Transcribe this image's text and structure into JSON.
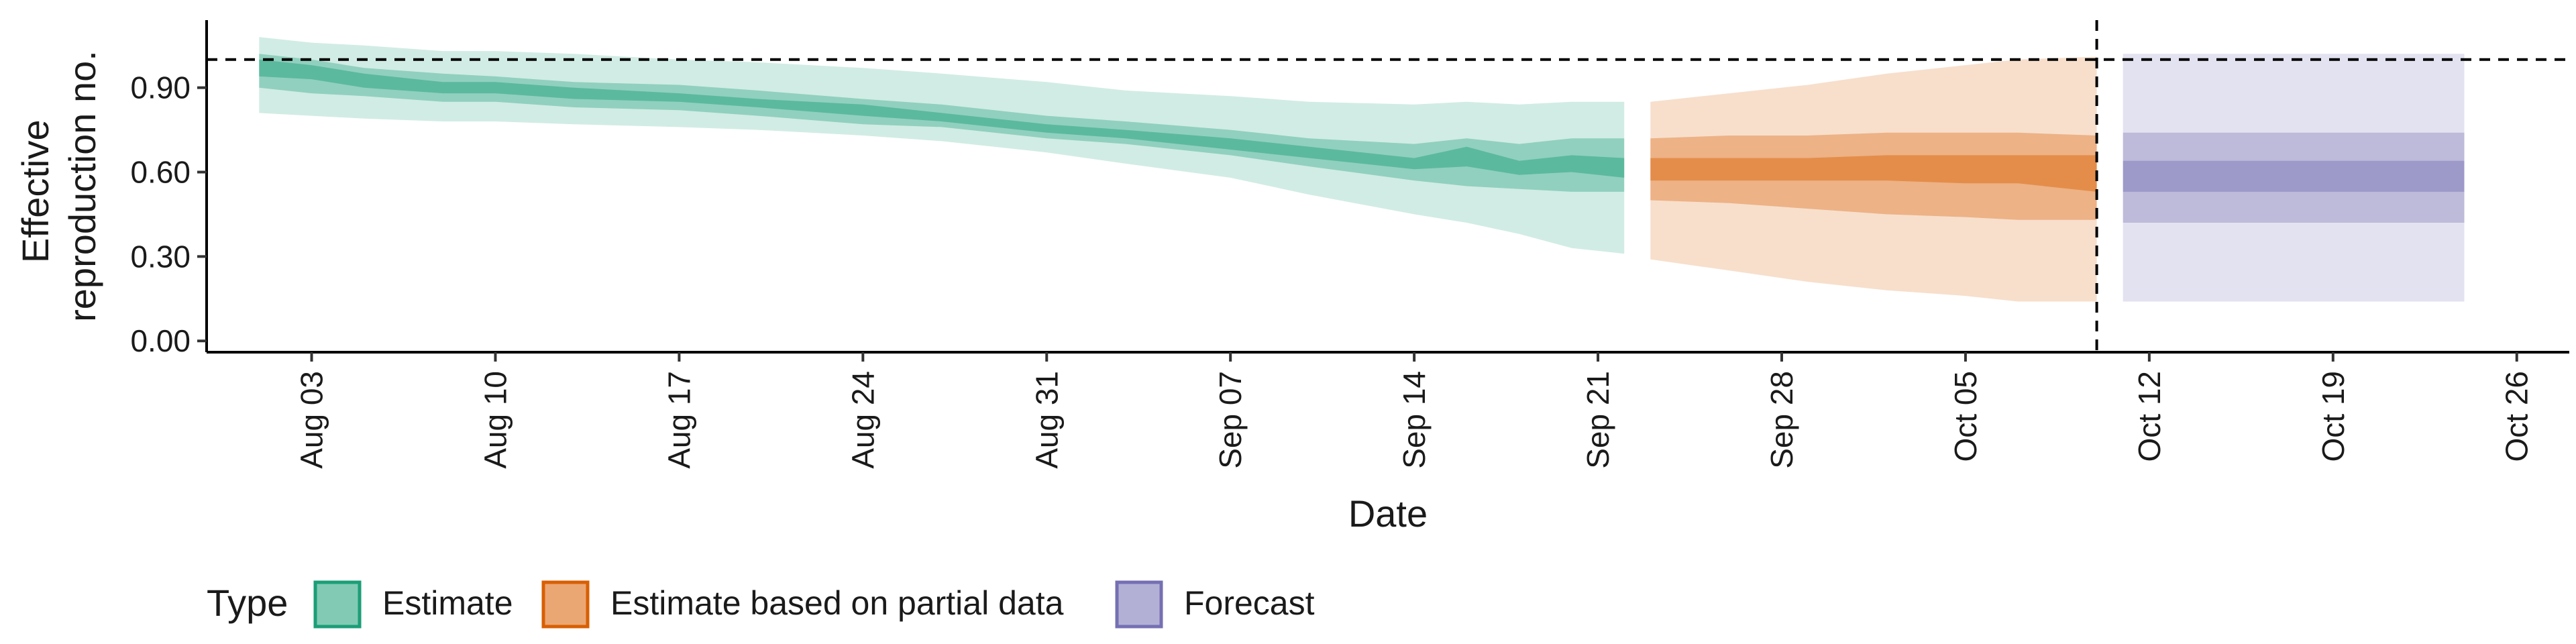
{
  "chart_data": {
    "type": "area",
    "xlabel": "Date",
    "ylabel_lines": [
      "Effective",
      "reproduction no."
    ],
    "x_ticks": [
      {
        "date": "2020-08-03",
        "label": "Aug 03"
      },
      {
        "date": "2020-08-10",
        "label": "Aug 10"
      },
      {
        "date": "2020-08-17",
        "label": "Aug 17"
      },
      {
        "date": "2020-08-24",
        "label": "Aug 24"
      },
      {
        "date": "2020-08-31",
        "label": "Aug 31"
      },
      {
        "date": "2020-09-07",
        "label": "Sep 07"
      },
      {
        "date": "2020-09-14",
        "label": "Sep 14"
      },
      {
        "date": "2020-09-21",
        "label": "Sep 21"
      },
      {
        "date": "2020-09-28",
        "label": "Sep 28"
      },
      {
        "date": "2020-10-05",
        "label": "Oct 05"
      },
      {
        "date": "2020-10-12",
        "label": "Oct 12"
      },
      {
        "date": "2020-10-19",
        "label": "Oct 19"
      },
      {
        "date": "2020-10-26",
        "label": "Oct 26"
      }
    ],
    "xlim": [
      "2020-07-30",
      "2020-10-28"
    ],
    "y_ticks": [
      {
        "value": 0.0,
        "label": "0.00"
      },
      {
        "value": 0.3,
        "label": "0.30"
      },
      {
        "value": 0.6,
        "label": "0.60"
      },
      {
        "value": 0.9,
        "label": "0.90"
      }
    ],
    "ylim": [
      -0.04,
      1.14
    ],
    "reference_line_y": 1.0,
    "reference_line_date": "2020-10-10",
    "grid": false,
    "legend": {
      "title": "Type",
      "placement": "bottom",
      "items": [
        {
          "label": "Estimate",
          "series": "estimate"
        },
        {
          "label": "Estimate based on partial data",
          "series": "partial"
        },
        {
          "label": "Forecast",
          "series": "forecast"
        }
      ]
    },
    "colors": {
      "estimate": "#1b9e77",
      "partial": "#d95f02",
      "forecast": "#7570b3"
    },
    "series": [
      {
        "key": "estimate",
        "points": [
          {
            "date": "2020-08-01",
            "lo90": 0.81,
            "lo50": 0.9,
            "lo20": 0.94,
            "hi20": 1.0,
            "hi50": 1.02,
            "hi90": 1.08
          },
          {
            "date": "2020-08-03",
            "lo90": 0.8,
            "lo50": 0.88,
            "lo20": 0.93,
            "hi20": 0.98,
            "hi50": 1.0,
            "hi90": 1.06
          },
          {
            "date": "2020-08-05",
            "lo90": 0.79,
            "lo50": 0.87,
            "lo20": 0.9,
            "hi20": 0.95,
            "hi50": 0.97,
            "hi90": 1.05
          },
          {
            "date": "2020-08-08",
            "lo90": 0.78,
            "lo50": 0.85,
            "lo20": 0.88,
            "hi20": 0.92,
            "hi50": 0.95,
            "hi90": 1.03
          },
          {
            "date": "2020-08-10",
            "lo90": 0.78,
            "lo50": 0.85,
            "lo20": 0.88,
            "hi20": 0.92,
            "hi50": 0.94,
            "hi90": 1.03
          },
          {
            "date": "2020-08-13",
            "lo90": 0.77,
            "lo50": 0.83,
            "lo20": 0.86,
            "hi20": 0.9,
            "hi50": 0.92,
            "hi90": 1.02
          },
          {
            "date": "2020-08-17",
            "lo90": 0.76,
            "lo50": 0.82,
            "lo20": 0.85,
            "hi20": 0.88,
            "hi50": 0.91,
            "hi90": 1.0
          },
          {
            "date": "2020-08-20",
            "lo90": 0.75,
            "lo50": 0.8,
            "lo20": 0.83,
            "hi20": 0.86,
            "hi50": 0.89,
            "hi90": 0.99
          },
          {
            "date": "2020-08-24",
            "lo90": 0.73,
            "lo50": 0.77,
            "lo20": 0.8,
            "hi20": 0.84,
            "hi50": 0.86,
            "hi90": 0.97
          },
          {
            "date": "2020-08-27",
            "lo90": 0.71,
            "lo50": 0.76,
            "lo20": 0.78,
            "hi20": 0.81,
            "hi50": 0.84,
            "hi90": 0.95
          },
          {
            "date": "2020-08-31",
            "lo90": 0.67,
            "lo50": 0.72,
            "lo20": 0.74,
            "hi20": 0.77,
            "hi50": 0.8,
            "hi90": 0.92
          },
          {
            "date": "2020-09-03",
            "lo90": 0.63,
            "lo50": 0.7,
            "lo20": 0.72,
            "hi20": 0.75,
            "hi50": 0.78,
            "hi90": 0.89
          },
          {
            "date": "2020-09-07",
            "lo90": 0.58,
            "lo50": 0.66,
            "lo20": 0.68,
            "hi20": 0.72,
            "hi50": 0.75,
            "hi90": 0.87
          },
          {
            "date": "2020-09-10",
            "lo90": 0.52,
            "lo50": 0.62,
            "lo20": 0.65,
            "hi20": 0.69,
            "hi50": 0.72,
            "hi90": 0.85
          },
          {
            "date": "2020-09-14",
            "lo90": 0.45,
            "lo50": 0.57,
            "lo20": 0.61,
            "hi20": 0.65,
            "hi50": 0.7,
            "hi90": 0.84
          },
          {
            "date": "2020-09-16",
            "lo90": 0.42,
            "lo50": 0.55,
            "lo20": 0.62,
            "hi20": 0.69,
            "hi50": 0.72,
            "hi90": 0.85
          },
          {
            "date": "2020-09-18",
            "lo90": 0.38,
            "lo50": 0.54,
            "lo20": 0.59,
            "hi20": 0.64,
            "hi50": 0.7,
            "hi90": 0.84
          },
          {
            "date": "2020-09-20",
            "lo90": 0.33,
            "lo50": 0.53,
            "lo20": 0.6,
            "hi20": 0.66,
            "hi50": 0.72,
            "hi90": 0.85
          },
          {
            "date": "2020-09-22",
            "lo90": 0.31,
            "lo50": 0.53,
            "lo20": 0.58,
            "hi20": 0.65,
            "hi50": 0.72,
            "hi90": 0.85
          }
        ]
      },
      {
        "key": "partial",
        "points": [
          {
            "date": "2020-09-23",
            "lo90": 0.29,
            "lo50": 0.5,
            "lo20": 0.57,
            "hi20": 0.65,
            "hi50": 0.72,
            "hi90": 0.85
          },
          {
            "date": "2020-09-26",
            "lo90": 0.25,
            "lo50": 0.49,
            "lo20": 0.57,
            "hi20": 0.65,
            "hi50": 0.73,
            "hi90": 0.88
          },
          {
            "date": "2020-09-29",
            "lo90": 0.21,
            "lo50": 0.47,
            "lo20": 0.57,
            "hi20": 0.65,
            "hi50": 0.73,
            "hi90": 0.91
          },
          {
            "date": "2020-10-02",
            "lo90": 0.18,
            "lo50": 0.45,
            "lo20": 0.57,
            "hi20": 0.66,
            "hi50": 0.74,
            "hi90": 0.95
          },
          {
            "date": "2020-10-05",
            "lo90": 0.16,
            "lo50": 0.44,
            "lo20": 0.56,
            "hi20": 0.66,
            "hi50": 0.74,
            "hi90": 0.98
          },
          {
            "date": "2020-10-07",
            "lo90": 0.14,
            "lo50": 0.43,
            "lo20": 0.56,
            "hi20": 0.66,
            "hi50": 0.74,
            "hi90": 1.0
          },
          {
            "date": "2020-10-10",
            "lo90": 0.14,
            "lo50": 0.43,
            "lo20": 0.53,
            "hi20": 0.66,
            "hi50": 0.73,
            "hi90": 1.01
          }
        ]
      },
      {
        "key": "forecast",
        "points": [
          {
            "date": "2020-10-11",
            "lo90": 0.14,
            "lo50": 0.42,
            "lo20": 0.53,
            "hi20": 0.64,
            "hi50": 0.74,
            "hi90": 1.02
          },
          {
            "date": "2020-10-24",
            "lo90": 0.14,
            "lo50": 0.42,
            "lo20": 0.53,
            "hi20": 0.64,
            "hi50": 0.74,
            "hi90": 1.02
          }
        ]
      }
    ]
  }
}
